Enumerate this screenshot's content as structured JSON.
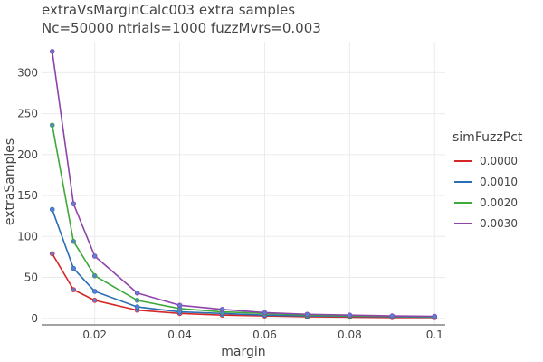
{
  "chart_data": {
    "type": "line",
    "title": "extraVsMarginCalc003 extra samples",
    "subtitle": "Nc=50000 ntrials=1000 fuzzMvrs=0.003",
    "xlabel": "margin",
    "ylabel": "extraSamples",
    "xlim": [
      0.0075,
      0.1025
    ],
    "ylim": [
      -8,
      338
    ],
    "xticks": [
      0.02,
      0.04,
      0.06,
      0.08,
      0.1
    ],
    "xtick_labels": [
      "0.02",
      "0.04",
      "0.06",
      "0.08",
      "0.1"
    ],
    "yticks": [
      0,
      50,
      100,
      150,
      200,
      250,
      300
    ],
    "ytick_labels": [
      "0",
      "50",
      "100",
      "150",
      "200",
      "250",
      "300"
    ],
    "grid": true,
    "legend_title": "simFuzzPct",
    "legend_position": "right",
    "marker_color": "#5b7fd6",
    "x": [
      0.01,
      0.015,
      0.02,
      0.03,
      0.04,
      0.05,
      0.06,
      0.07,
      0.08,
      0.09,
      0.1
    ],
    "series": [
      {
        "name": "0.0000",
        "color": "#d62728",
        "values": [
          79,
          35,
          22,
          10,
          6,
          4,
          3,
          2,
          1.5,
          1,
          1
        ]
      },
      {
        "name": "0.0010",
        "color": "#2a6eb3",
        "values": [
          133,
          61,
          33,
          14,
          8,
          6,
          4,
          3,
          2.5,
          2,
          1.5
        ]
      },
      {
        "name": "0.0020",
        "color": "#3ea83a",
        "values": [
          236,
          94,
          52,
          22,
          12,
          8,
          6,
          4,
          3,
          2.5,
          2
        ]
      },
      {
        "name": "0.0030",
        "color": "#8e44a8",
        "values": [
          326,
          140,
          76,
          31,
          16,
          11,
          7,
          5,
          4,
          3,
          2.5
        ]
      }
    ]
  }
}
